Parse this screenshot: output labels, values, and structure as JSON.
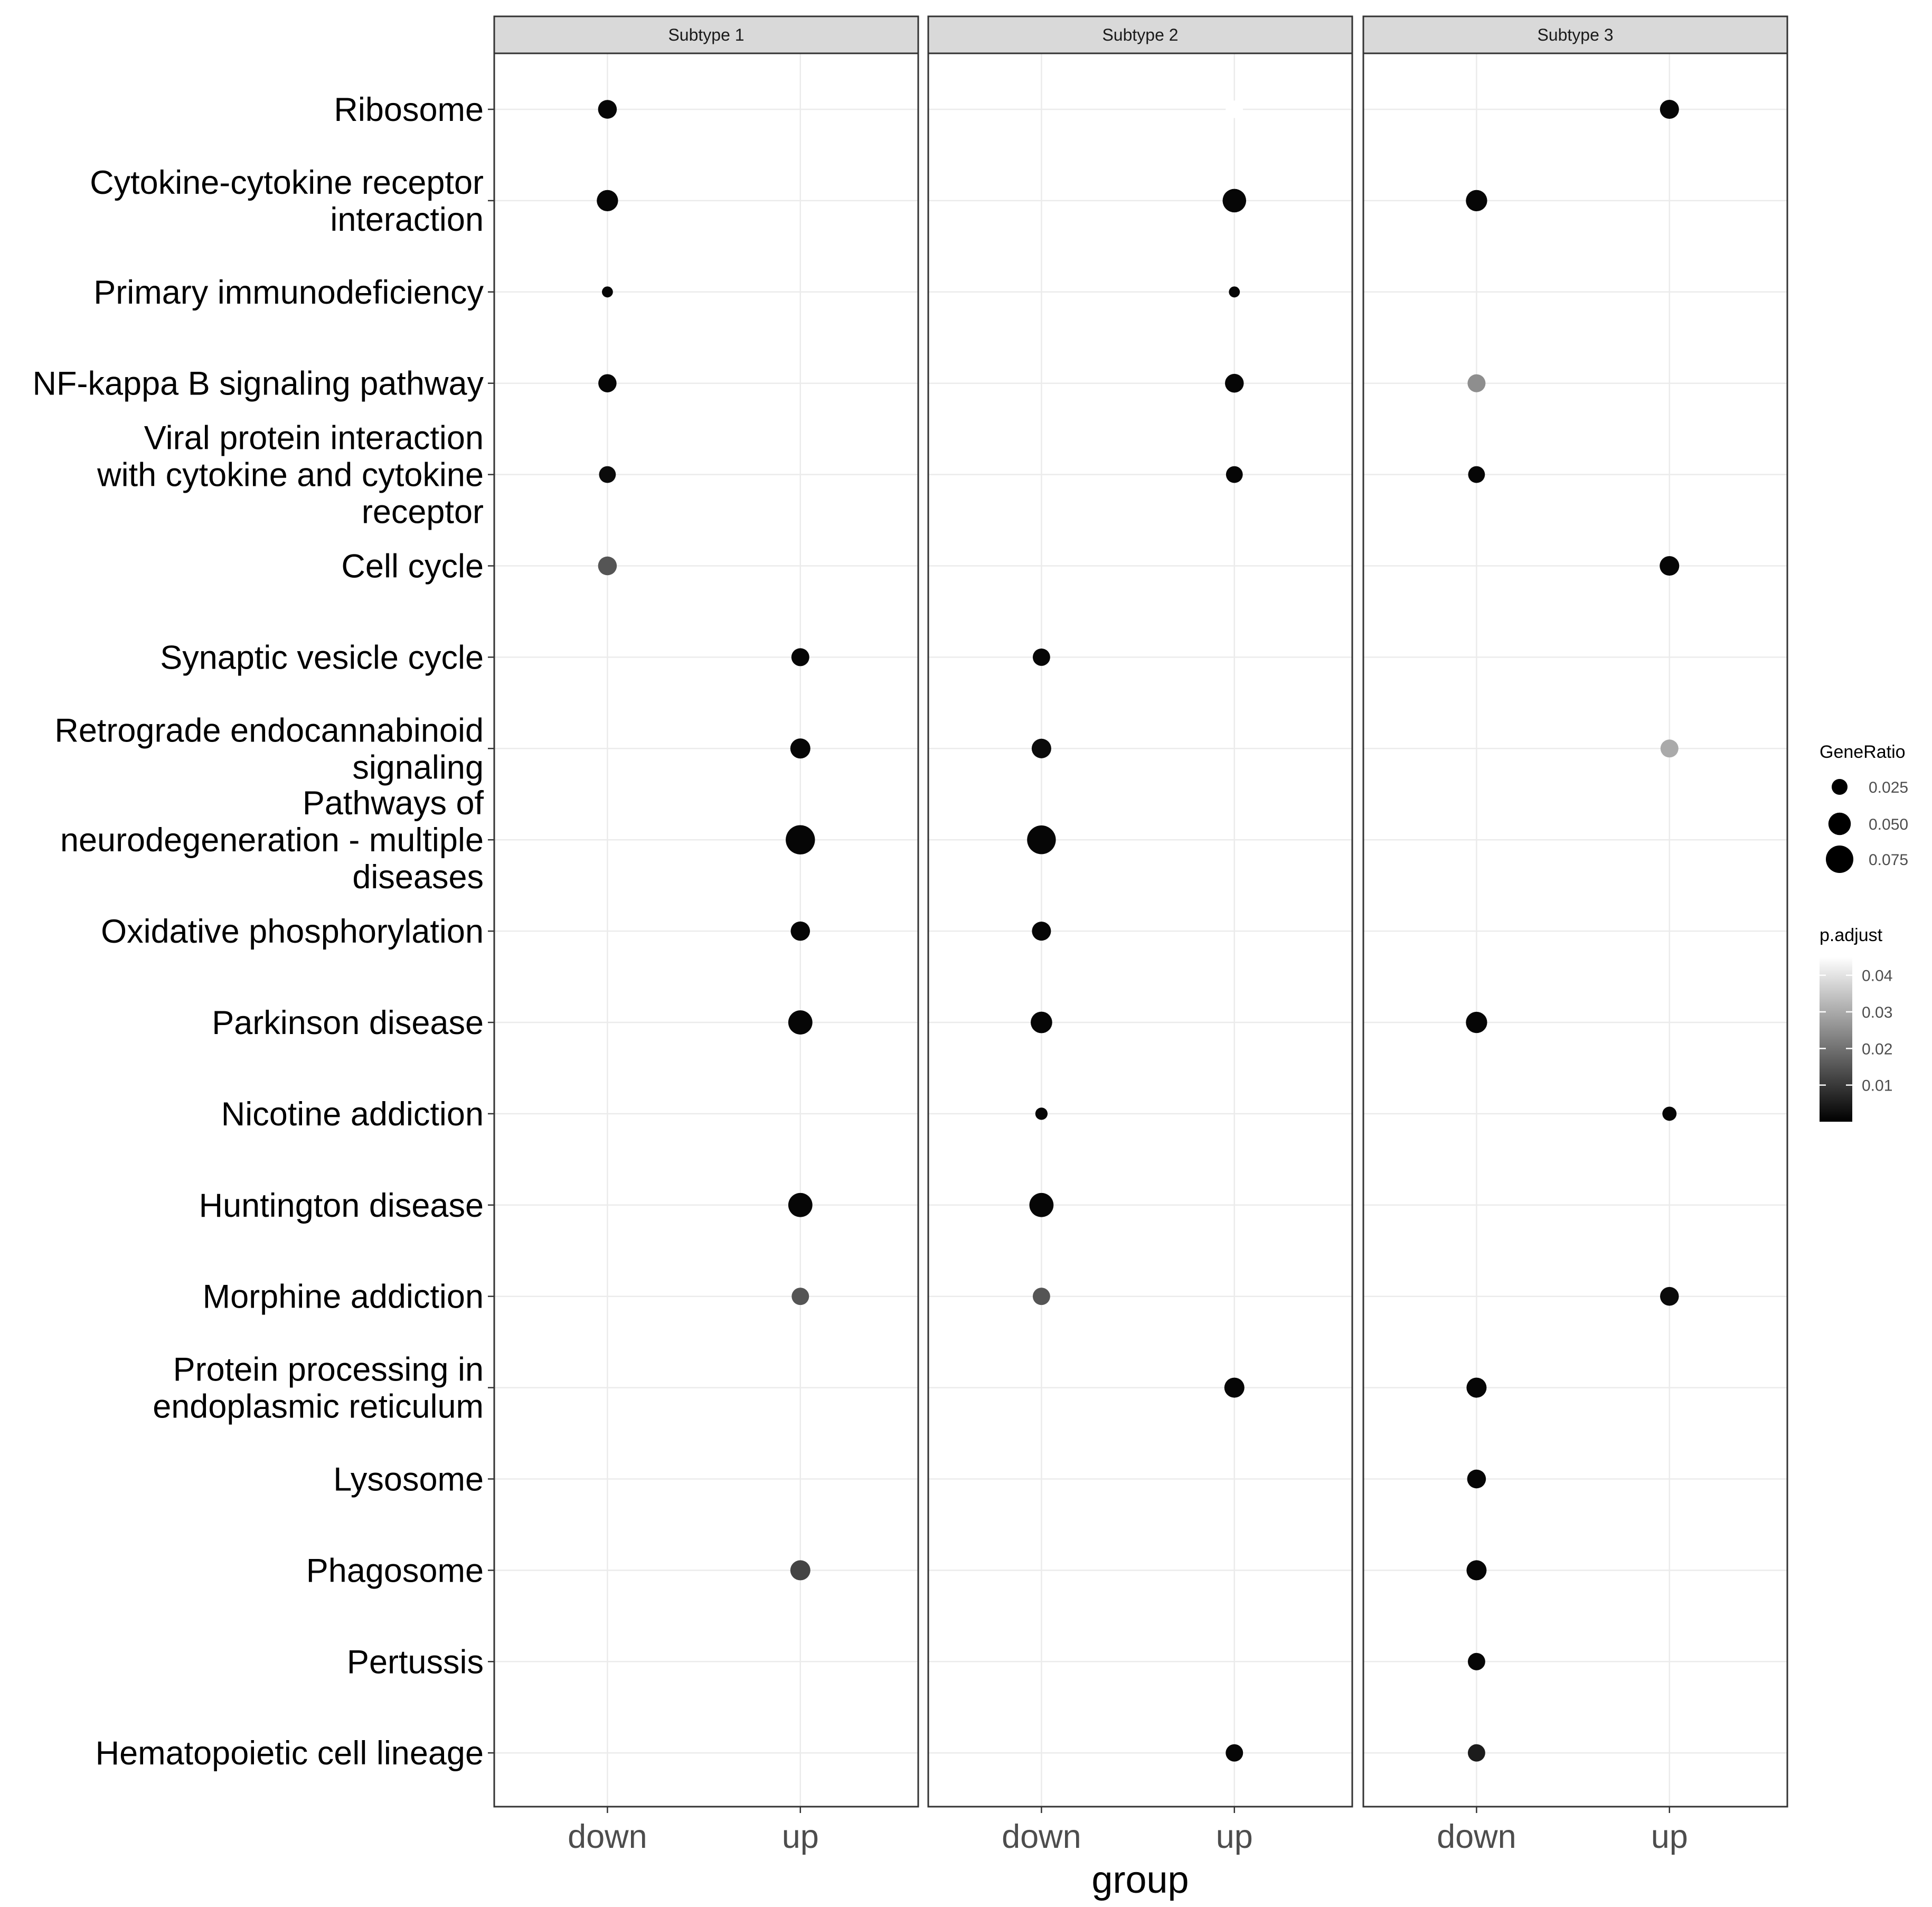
{
  "chart_data": {
    "type": "scatter",
    "subtype": "faceted dot plot",
    "facets": [
      "Subtype  1",
      "Subtype  2",
      "Subtype  3"
    ],
    "x_categories": [
      "down",
      "up"
    ],
    "xlabel": "group",
    "ylabel": "",
    "grid": true,
    "terms": [
      {
        "label": [
          "Ribosome"
        ]
      },
      {
        "label": [
          "Cytokine-cytokine receptor",
          "interaction"
        ]
      },
      {
        "label": [
          "Primary immunodeficiency"
        ]
      },
      {
        "label": [
          "NF-kappa B signaling pathway"
        ]
      },
      {
        "label": [
          "Viral protein interaction",
          "with cytokine and cytokine",
          "receptor"
        ]
      },
      {
        "label": [
          "Cell cycle"
        ]
      },
      {
        "label": [
          "Synaptic vesicle cycle"
        ]
      },
      {
        "label": [
          "Retrograde endocannabinoid",
          "signaling"
        ]
      },
      {
        "label": [
          "Pathways of",
          "neurodegeneration - multiple",
          "diseases"
        ]
      },
      {
        "label": [
          "Oxidative phosphorylation"
        ]
      },
      {
        "label": [
          "Parkinson disease"
        ]
      },
      {
        "label": [
          "Nicotine addiction"
        ]
      },
      {
        "label": [
          "Huntington disease"
        ]
      },
      {
        "label": [
          "Morphine addiction"
        ]
      },
      {
        "label": [
          "Protein processing in",
          "endoplasmic reticulum"
        ]
      },
      {
        "label": [
          "Lysosome"
        ]
      },
      {
        "label": [
          "Phagosome"
        ]
      },
      {
        "label": [
          "Pertussis"
        ]
      },
      {
        "label": [
          "Hematopoietic cell lineage"
        ]
      }
    ],
    "points": [
      {
        "facet": 0,
        "group": "down",
        "term": 0,
        "gene_ratio": 0.035,
        "p_adjust": 0.001
      },
      {
        "facet": 0,
        "group": "down",
        "term": 1,
        "gene_ratio": 0.045,
        "p_adjust": 0.001
      },
      {
        "facet": 0,
        "group": "down",
        "term": 2,
        "gene_ratio": 0.012,
        "p_adjust": 0.001
      },
      {
        "facet": 0,
        "group": "down",
        "term": 3,
        "gene_ratio": 0.033,
        "p_adjust": 0.001
      },
      {
        "facet": 0,
        "group": "down",
        "term": 4,
        "gene_ratio": 0.028,
        "p_adjust": 0.002
      },
      {
        "facet": 0,
        "group": "down",
        "term": 5,
        "gene_ratio": 0.035,
        "p_adjust": 0.015
      },
      {
        "facet": 0,
        "group": "up",
        "term": 6,
        "gene_ratio": 0.032,
        "p_adjust": 0.001
      },
      {
        "facet": 0,
        "group": "up",
        "term": 7,
        "gene_ratio": 0.04,
        "p_adjust": 0.001
      },
      {
        "facet": 0,
        "group": "up",
        "term": 8,
        "gene_ratio": 0.085,
        "p_adjust": 0.001
      },
      {
        "facet": 0,
        "group": "up",
        "term": 9,
        "gene_ratio": 0.037,
        "p_adjust": 0.001
      },
      {
        "facet": 0,
        "group": "up",
        "term": 10,
        "gene_ratio": 0.058,
        "p_adjust": 0.001
      },
      {
        "facet": 0,
        "group": "up",
        "term": 12,
        "gene_ratio": 0.058,
        "p_adjust": 0.001
      },
      {
        "facet": 0,
        "group": "up",
        "term": 13,
        "gene_ratio": 0.03,
        "p_adjust": 0.015
      },
      {
        "facet": 0,
        "group": "up",
        "term": 16,
        "gene_ratio": 0.04,
        "p_adjust": 0.012
      },
      {
        "facet": 1,
        "group": "up",
        "term": 0,
        "gene_ratio": 0.03,
        "p_adjust": 0.045
      },
      {
        "facet": 1,
        "group": "up",
        "term": 1,
        "gene_ratio": 0.055,
        "p_adjust": 0.001
      },
      {
        "facet": 1,
        "group": "up",
        "term": 2,
        "gene_ratio": 0.012,
        "p_adjust": 0.001
      },
      {
        "facet": 1,
        "group": "up",
        "term": 3,
        "gene_ratio": 0.035,
        "p_adjust": 0.001
      },
      {
        "facet": 1,
        "group": "up",
        "term": 4,
        "gene_ratio": 0.028,
        "p_adjust": 0.001
      },
      {
        "facet": 1,
        "group": "down",
        "term": 6,
        "gene_ratio": 0.03,
        "p_adjust": 0.001
      },
      {
        "facet": 1,
        "group": "down",
        "term": 7,
        "gene_ratio": 0.038,
        "p_adjust": 0.002
      },
      {
        "facet": 1,
        "group": "down",
        "term": 8,
        "gene_ratio": 0.082,
        "p_adjust": 0.001
      },
      {
        "facet": 1,
        "group": "down",
        "term": 9,
        "gene_ratio": 0.036,
        "p_adjust": 0.001
      },
      {
        "facet": 1,
        "group": "down",
        "term": 10,
        "gene_ratio": 0.046,
        "p_adjust": 0.001
      },
      {
        "facet": 1,
        "group": "down",
        "term": 11,
        "gene_ratio": 0.015,
        "p_adjust": 0.001
      },
      {
        "facet": 1,
        "group": "down",
        "term": 12,
        "gene_ratio": 0.058,
        "p_adjust": 0.001
      },
      {
        "facet": 1,
        "group": "down",
        "term": 13,
        "gene_ratio": 0.03,
        "p_adjust": 0.015
      },
      {
        "facet": 1,
        "group": "up",
        "term": 14,
        "gene_ratio": 0.04,
        "p_adjust": 0.001
      },
      {
        "facet": 1,
        "group": "up",
        "term": 18,
        "gene_ratio": 0.03,
        "p_adjust": 0.001
      },
      {
        "facet": 2,
        "group": "up",
        "term": 0,
        "gene_ratio": 0.036,
        "p_adjust": 0.001
      },
      {
        "facet": 2,
        "group": "down",
        "term": 1,
        "gene_ratio": 0.045,
        "p_adjust": 0.001
      },
      {
        "facet": 2,
        "group": "down",
        "term": 3,
        "gene_ratio": 0.032,
        "p_adjust": 0.025
      },
      {
        "facet": 2,
        "group": "down",
        "term": 4,
        "gene_ratio": 0.028,
        "p_adjust": 0.001
      },
      {
        "facet": 2,
        "group": "up",
        "term": 5,
        "gene_ratio": 0.038,
        "p_adjust": 0.001
      },
      {
        "facet": 2,
        "group": "up",
        "term": 7,
        "gene_ratio": 0.032,
        "p_adjust": 0.03
      },
      {
        "facet": 2,
        "group": "down",
        "term": 10,
        "gene_ratio": 0.045,
        "p_adjust": 0.001
      },
      {
        "facet": 2,
        "group": "up",
        "term": 11,
        "gene_ratio": 0.02,
        "p_adjust": 0.001
      },
      {
        "facet": 2,
        "group": "up",
        "term": 13,
        "gene_ratio": 0.035,
        "p_adjust": 0.002
      },
      {
        "facet": 2,
        "group": "down",
        "term": 14,
        "gene_ratio": 0.04,
        "p_adjust": 0.001
      },
      {
        "facet": 2,
        "group": "down",
        "term": 15,
        "gene_ratio": 0.035,
        "p_adjust": 0.001
      },
      {
        "facet": 2,
        "group": "down",
        "term": 16,
        "gene_ratio": 0.04,
        "p_adjust": 0.001
      },
      {
        "facet": 2,
        "group": "down",
        "term": 17,
        "gene_ratio": 0.03,
        "p_adjust": 0.001
      },
      {
        "facet": 2,
        "group": "down",
        "term": 18,
        "gene_ratio": 0.03,
        "p_adjust": 0.005
      }
    ],
    "legend": {
      "size": {
        "title": "GeneRatio",
        "breaks": [
          0.025,
          0.05,
          0.075
        ],
        "labels": [
          "0.025",
          "0.050",
          "0.075"
        ]
      },
      "color": {
        "title": "p.adjust",
        "range": [
          0.0,
          0.045
        ],
        "breaks": [
          0.01,
          0.02,
          0.03,
          0.04
        ],
        "labels": [
          "0.01",
          "0.02",
          "0.03",
          "0.04"
        ],
        "low_color": "#000000",
        "high_color": "#ffffff"
      }
    }
  }
}
